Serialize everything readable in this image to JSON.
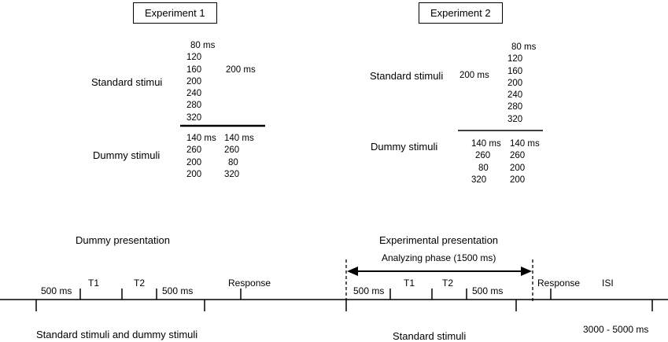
{
  "exp1": {
    "title": "Experiment 1",
    "standard_label": "Standard stimui",
    "standard_values": [
      "80 ms",
      "120",
      "160",
      "200",
      "240",
      "280",
      "320"
    ],
    "standard_comparison": "200 ms",
    "dummy_label": "Dummy stimuli",
    "dummy_col1": [
      "140 ms",
      "260",
      "200",
      "200"
    ],
    "dummy_col2": [
      "140 ms",
      "260",
      "80",
      "320"
    ]
  },
  "exp2": {
    "title": "Experiment 2",
    "standard_label": "Standard stimuli",
    "standard_first": "200 ms",
    "standard_values": [
      "80 ms",
      "120",
      "160",
      "200",
      "240",
      "280",
      "320"
    ],
    "dummy_label": "Dummy stimuli",
    "dummy_col1": [
      "140 ms",
      "260",
      "80",
      "320"
    ],
    "dummy_col2": [
      "140 ms",
      "260",
      "200",
      "200"
    ]
  },
  "timeline": {
    "dummy_presentation": "Dummy presentation",
    "experimental_presentation": "Experimental presentation",
    "analyzing_phase": "Analyzing phase (1500 ms)",
    "left_500_a": "500 ms",
    "left_t1": "T1",
    "left_t2": "T2",
    "left_500_b": "500 ms",
    "left_response": "Response",
    "right_500_a": "500 ms",
    "right_t1": "T1",
    "right_t2": "T2",
    "right_500_b": "500 ms",
    "right_response": "Response",
    "isi": "ISI",
    "left_caption": "Standard stimuli and dummy stimuli",
    "right_caption": "Standard stimuli",
    "isi_range": "3000 - 5000 ms"
  }
}
